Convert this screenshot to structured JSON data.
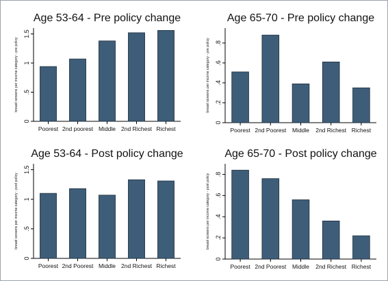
{
  "colors": {
    "bar_fill": "#3e5d78",
    "bar_stroke": "#1e2f3e",
    "axis": "#000000",
    "text": "#111111",
    "background": "#ffffff"
  },
  "chart_data": [
    {
      "type": "bar",
      "title": "Age 53-64 - Pre policy change",
      "ylabel": "breast screens per income category - pre policy",
      "xlabel": "",
      "categories": [
        "Poorest",
        "2nd poorest",
        "Middle",
        "2nd Richest",
        "Richest"
      ],
      "values": [
        0.94,
        1.07,
        1.38,
        1.52,
        1.56
      ],
      "ylim": [
        0,
        1.6
      ],
      "yticks": [
        0,
        0.5,
        1,
        1.5
      ],
      "ytick_labels": [
        "0",
        ".5",
        "1",
        "1.5"
      ],
      "grid": false
    },
    {
      "type": "bar",
      "title": "Age 65-70 - Pre policy change",
      "ylabel": "breast screens per income category - pre policy",
      "xlabel": "",
      "categories": [
        "Poorest",
        "2nd Poorest",
        "Middle",
        "2nd Richest",
        "Richest"
      ],
      "values": [
        0.51,
        0.88,
        0.39,
        0.61,
        0.35
      ],
      "ylim": [
        0,
        0.95
      ],
      "yticks": [
        0,
        0.2,
        0.4,
        0.6,
        0.8
      ],
      "ytick_labels": [
        "0",
        ".2",
        ".4",
        ".6",
        ".8"
      ],
      "grid": false
    },
    {
      "type": "bar",
      "title": "Age 53-64 - Post policy change",
      "ylabel": "breast screens per income category - post policy",
      "xlabel": "",
      "categories": [
        "Poorest",
        "2nd Poorest",
        "Middle",
        "2nd Richest",
        "Richest"
      ],
      "values": [
        1.1,
        1.18,
        1.07,
        1.33,
        1.31
      ],
      "ylim": [
        0,
        1.6
      ],
      "yticks": [
        0,
        0.5,
        1,
        1.5
      ],
      "ytick_labels": [
        "0",
        ".5",
        "1",
        "1.5"
      ],
      "grid": false
    },
    {
      "type": "bar",
      "title": "Age 65-70 - Post policy change",
      "ylabel": "breast screens per income category - post policy",
      "xlabel": "",
      "categories": [
        "Poorest",
        "2nd Poorest",
        "Middle",
        "2nd Richest",
        "Richest"
      ],
      "values": [
        0.84,
        0.76,
        0.56,
        0.36,
        0.22
      ],
      "ylim": [
        0,
        0.9
      ],
      "yticks": [
        0,
        0.2,
        0.4,
        0.6,
        0.8
      ],
      "ytick_labels": [
        "0",
        ".2",
        ".4",
        ".6",
        ".8"
      ],
      "grid": false
    }
  ]
}
